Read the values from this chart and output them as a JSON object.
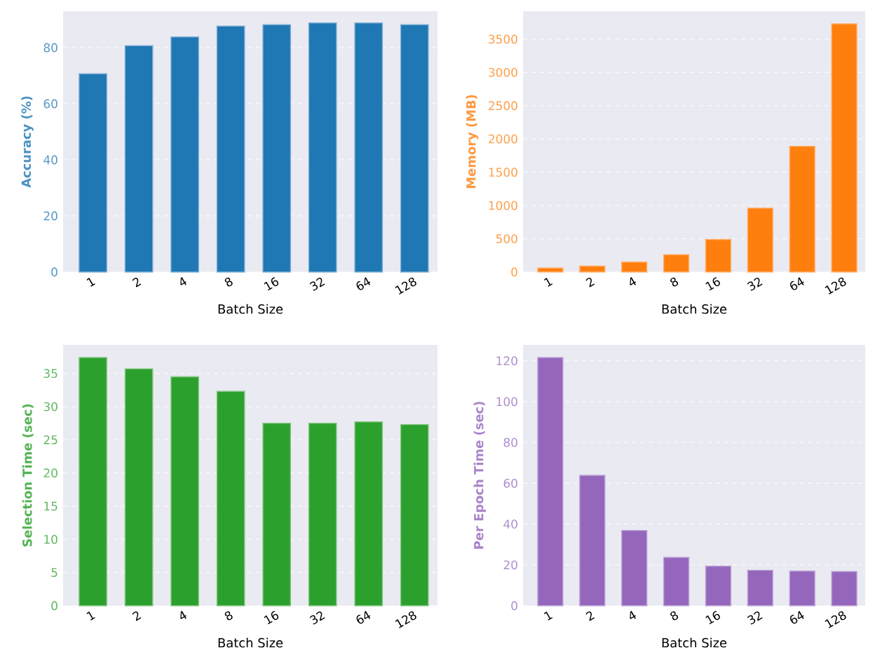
{
  "chart_data": [
    {
      "type": "bar",
      "categories": [
        "1",
        "2",
        "4",
        "8",
        "16",
        "32",
        "64",
        "128"
      ],
      "values": [
        70.7,
        80.7,
        83.8,
        87.7,
        88.2,
        88.8,
        88.8,
        88.2
      ],
      "color": "#1f77b4",
      "ylim": [
        0,
        93
      ],
      "yticks": [
        0,
        20,
        40,
        60,
        80
      ],
      "ylabel": "Accuracy (%)",
      "xlabel": "Batch Size",
      "grid": "y"
    },
    {
      "type": "bar",
      "categories": [
        "1",
        "2",
        "4",
        "8",
        "16",
        "32",
        "64",
        "128"
      ],
      "values": [
        60,
        90,
        150,
        260,
        490,
        960,
        1890,
        3730
      ],
      "color": "#ff7f0e",
      "ylim": [
        0,
        3920
      ],
      "yticks": [
        0,
        500,
        1000,
        1500,
        2000,
        2500,
        3000,
        3500
      ],
      "ylabel": "Memory (MB)",
      "xlabel": "Batch Size",
      "grid": "y"
    },
    {
      "type": "bar",
      "categories": [
        "1",
        "2",
        "4",
        "8",
        "16",
        "32",
        "64",
        "128"
      ],
      "values": [
        37.4,
        35.7,
        34.5,
        32.3,
        27.5,
        27.5,
        27.7,
        27.3
      ],
      "color": "#2ca02c",
      "ylim": [
        0,
        39.3
      ],
      "yticks": [
        0,
        5,
        10,
        15,
        20,
        25,
        30,
        35
      ],
      "ylabel": "Selection Time (sec)",
      "xlabel": "Batch Size",
      "grid": "y"
    },
    {
      "type": "bar",
      "categories": [
        "1",
        "2",
        "4",
        "8",
        "16",
        "32",
        "64",
        "128"
      ],
      "values": [
        121.6,
        63.9,
        36.9,
        23.7,
        19.4,
        17.4,
        17.0,
        16.8
      ],
      "color": "#9467bd",
      "ylim": [
        0,
        127.8
      ],
      "yticks": [
        0,
        20,
        40,
        60,
        80,
        100,
        120
      ],
      "ylabel": "Per Epoch Time (sec)",
      "xlabel": "Batch Size",
      "grid": "y"
    }
  ]
}
